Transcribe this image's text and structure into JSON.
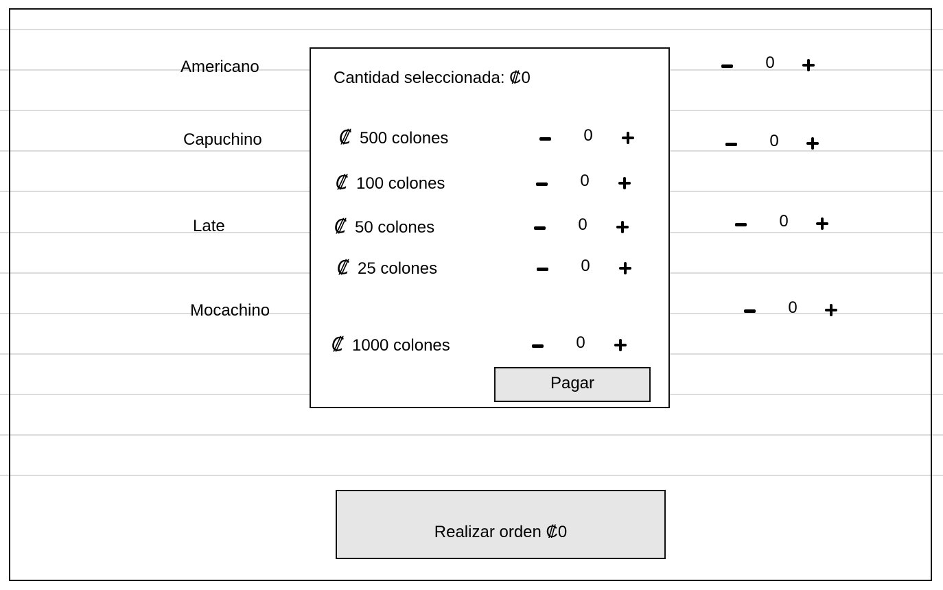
{
  "drinks": [
    {
      "label": "Americano",
      "count": "0"
    },
    {
      "label": "Capuchino",
      "count": "0"
    },
    {
      "label": "Late",
      "count": "0"
    },
    {
      "label": "Mocachino",
      "count": "0"
    }
  ],
  "payment": {
    "summary": "Cantidad seleccionada: ₡0",
    "currency_symbol": "₡",
    "coins": [
      {
        "label": "500 colones",
        "count": "0"
      },
      {
        "label": "100 colones",
        "count": "0"
      },
      {
        "label": "50 colones",
        "count": "0"
      },
      {
        "label": "25 colones",
        "count": "0"
      },
      {
        "label": "1000 colones",
        "count": "0"
      }
    ],
    "pay_label": "Pagar"
  },
  "order": {
    "button_label": "Realizar orden ₡0"
  },
  "colors": {
    "button_bg": "#e6e6e6",
    "rule_line": "#dcdcdc",
    "border": "#111111"
  },
  "icons": {
    "decrement": "minus-icon",
    "increment": "plus-icon",
    "currency": "colon-sign-icon"
  }
}
